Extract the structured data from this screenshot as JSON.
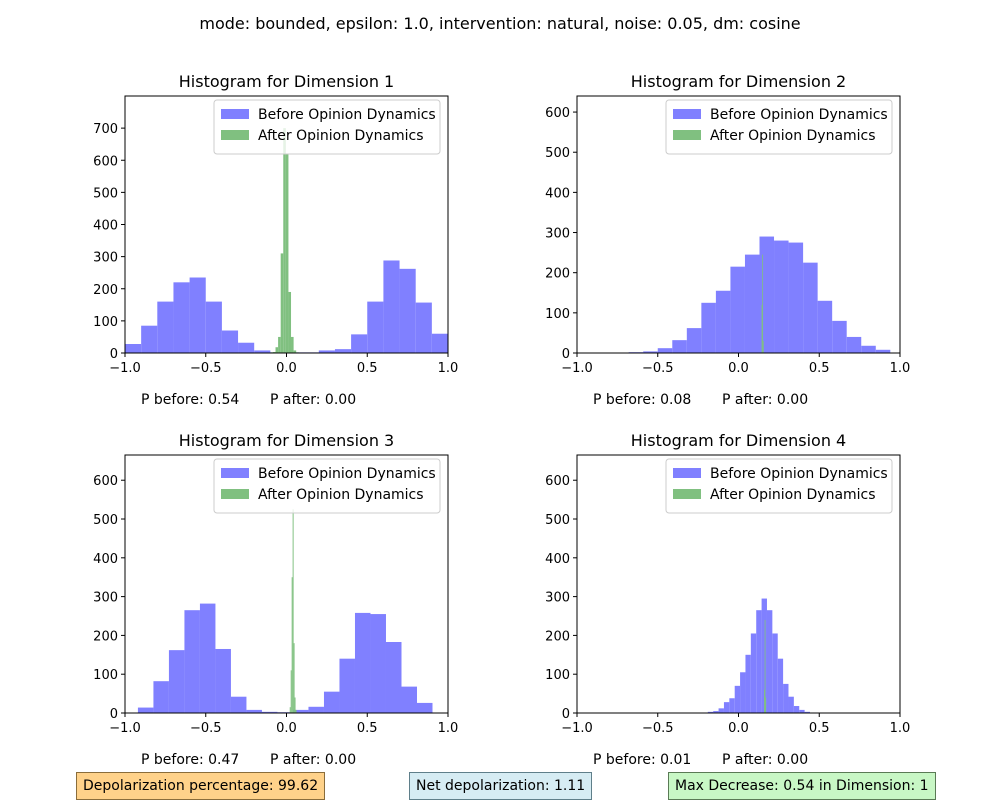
{
  "figure": {
    "suptitle": "mode: bounded, epsilon: 1.0, intervention: natural, noise: 0.05, dm: cosine"
  },
  "colors": {
    "before": "#8080ff",
    "after": "#80c080"
  },
  "legend": {
    "before": "Before Opinion Dynamics",
    "after": "After Opinion Dynamics",
    "placement": "upper right"
  },
  "chart_data": [
    {
      "type": "bar",
      "title": "Histogram for Dimension 1",
      "xlim": [
        -1.0,
        1.0
      ],
      "ylim": [
        0,
        800
      ],
      "xticks": [
        -1.0,
        -0.5,
        0.0,
        0.5,
        1.0
      ],
      "xtick_labels": [
        "−1.0",
        "−0.5",
        "0.0",
        "0.5",
        "1.0"
      ],
      "yticks": [
        0,
        100,
        200,
        300,
        400,
        500,
        600,
        700
      ],
      "p_before": "P before: 0.54",
      "p_after": "P after: 0.00",
      "series": [
        {
          "name": "Before Opinion Dynamics",
          "bin_start": -1.0,
          "bin_width": 0.1,
          "values": [
            28,
            85,
            160,
            220,
            235,
            160,
            70,
            32,
            8,
            2,
            2,
            2,
            8,
            12,
            58,
            160,
            288,
            262,
            157,
            60
          ]
        },
        {
          "name": "After Opinion Dynamics",
          "bin_start": -0.1,
          "bin_width": 0.016,
          "values": [
            2,
            3,
            18,
            50,
            310,
            700,
            620,
            190,
            50,
            8,
            2,
            1
          ]
        }
      ]
    },
    {
      "type": "bar",
      "title": "Histogram for Dimension 2",
      "xlim": [
        -1.0,
        1.0
      ],
      "ylim": [
        0,
        640
      ],
      "xticks": [
        -1.0,
        -0.5,
        0.0,
        0.5,
        1.0
      ],
      "xtick_labels": [
        "−1.0",
        "−0.5",
        "0.0",
        "0.5",
        "1.0"
      ],
      "yticks": [
        0,
        100,
        200,
        300,
        400,
        500,
        600
      ],
      "p_before": "P before: 0.08",
      "p_after": "P after: 0.00",
      "series": [
        {
          "name": "Before Opinion Dynamics",
          "bin_start": -0.86,
          "bin_width": 0.09,
          "values": [
            1,
            1,
            2,
            4,
            12,
            32,
            62,
            125,
            155,
            215,
            245,
            290,
            280,
            275,
            225,
            130,
            80,
            40,
            18,
            8
          ]
        },
        {
          "name": "After Opinion Dynamics",
          "bin_start": 0.143,
          "bin_width": 0.004,
          "values": [
            120,
            245,
            30
          ]
        }
      ]
    },
    {
      "type": "bar",
      "title": "Histogram for Dimension 3",
      "xlim": [
        -1.0,
        1.0
      ],
      "ylim": [
        0,
        665
      ],
      "xticks": [
        -1.0,
        -0.5,
        0.0,
        0.5,
        1.0
      ],
      "xtick_labels": [
        "−1.0",
        "−0.5",
        "0.0",
        "0.5",
        "1.0"
      ],
      "yticks": [
        0,
        100,
        200,
        300,
        400,
        500,
        600
      ],
      "p_before": "P before: 0.47",
      "p_after": "P after: 0.00",
      "series": [
        {
          "name": "Before Opinion Dynamics",
          "bin_start": -0.92,
          "bin_width": 0.096,
          "values": [
            14,
            82,
            162,
            265,
            282,
            165,
            42,
            8,
            3,
            2,
            8,
            16,
            55,
            140,
            258,
            255,
            183,
            68,
            26
          ]
        },
        {
          "name": "After Opinion Dynamics",
          "bin_start": 0.02,
          "bin_width": 0.006,
          "values": [
            15,
            110,
            350,
            525,
            180,
            40,
            8
          ]
        }
      ]
    },
    {
      "type": "bar",
      "title": "Histogram for Dimension 4",
      "xlim": [
        -1.0,
        1.0
      ],
      "ylim": [
        0,
        665
      ],
      "xticks": [
        -1.0,
        -0.5,
        0.0,
        0.5,
        1.0
      ],
      "xtick_labels": [
        "−1.0",
        "−0.5",
        "0.0",
        "0.5",
        "1.0"
      ],
      "yticks": [
        0,
        100,
        200,
        300,
        400,
        500,
        600
      ],
      "p_before": "P before: 0.01",
      "p_after": "P after: 0.00",
      "series": [
        {
          "name": "Before Opinion Dynamics",
          "bin_start": -0.19,
          "bin_width": 0.0333,
          "values": [
            3,
            5,
            12,
            28,
            38,
            70,
            105,
            150,
            205,
            265,
            295,
            265,
            205,
            140,
            75,
            42,
            18,
            8,
            3,
            1
          ]
        },
        {
          "name": "After Opinion Dynamics",
          "bin_start": 0.158,
          "bin_width": 0.004,
          "values": [
            60,
            240,
            40
          ]
        }
      ]
    }
  ],
  "footer": {
    "depolarization": "Depolarization percentage: 99.62",
    "net": "Net depolarization: 1.11",
    "max_decrease": "Max Decrease: 0.54 in Dimension: 1"
  }
}
